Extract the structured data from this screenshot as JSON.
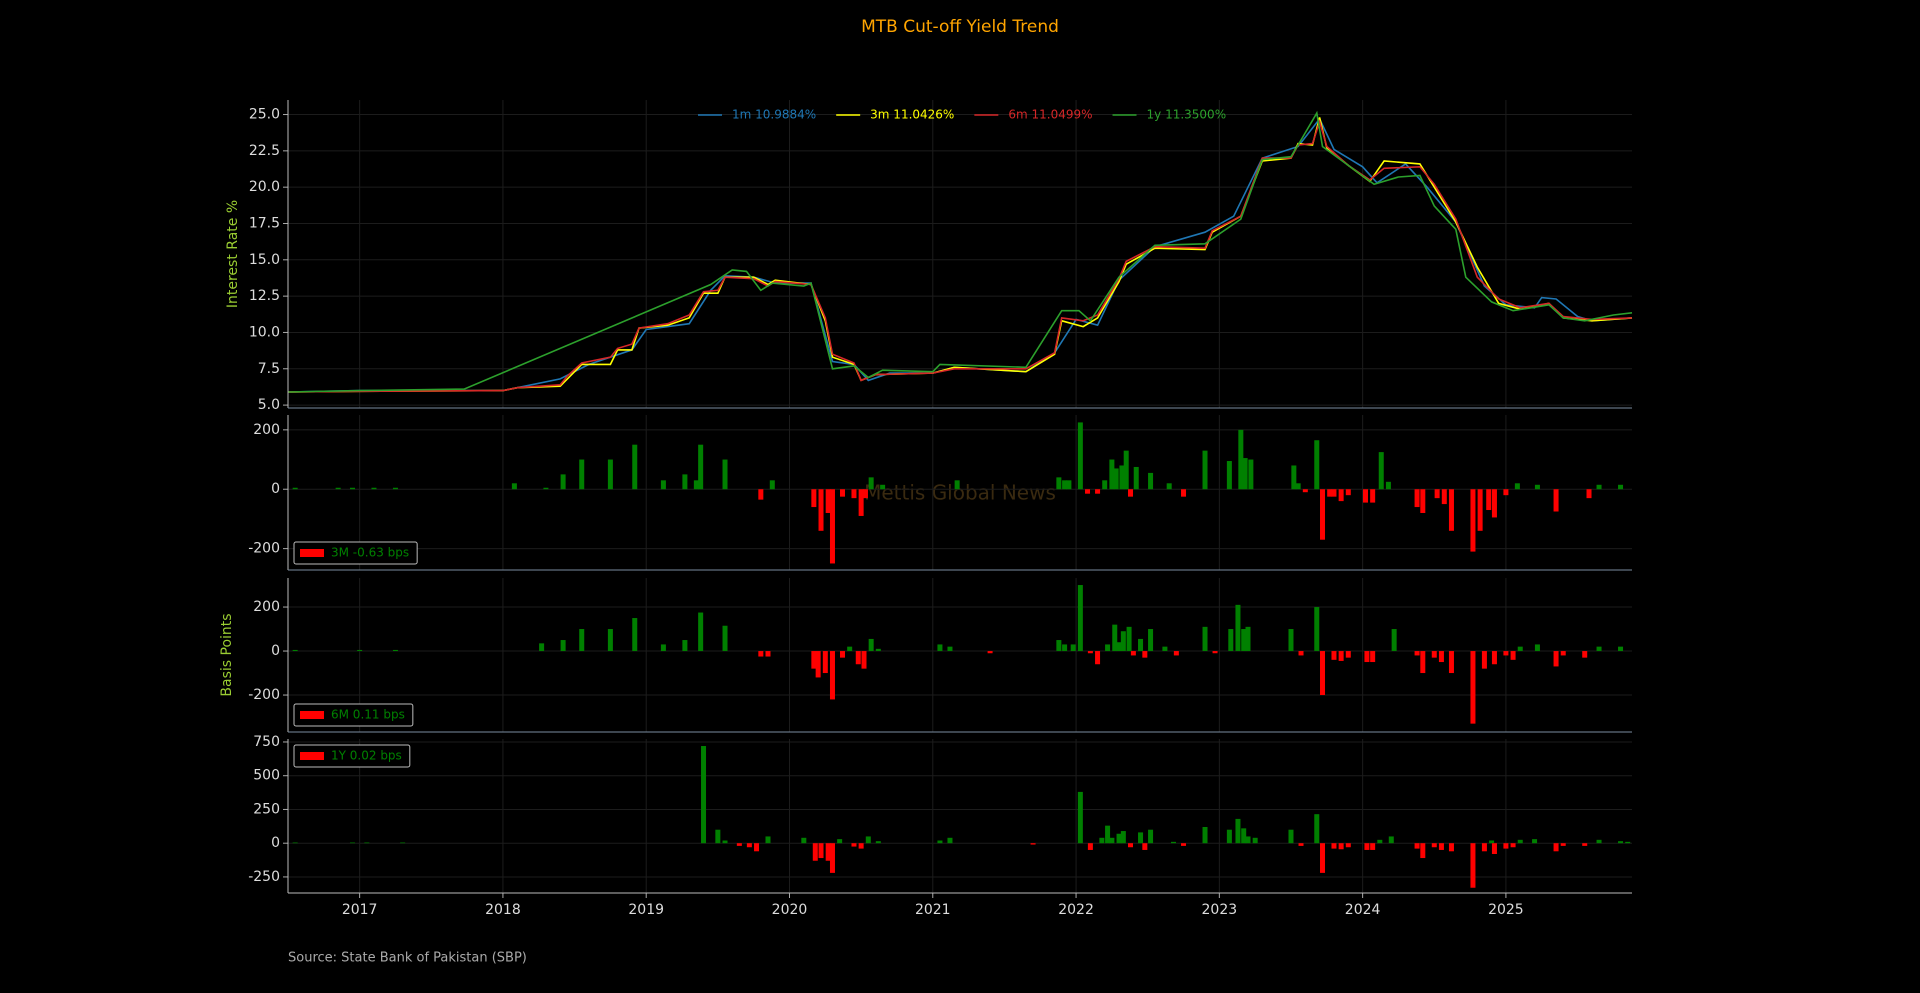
{
  "chart_data": [
    {
      "type": "line",
      "title": "MTB Cut-off Yield Trend",
      "ylabel": "Interest Rate %",
      "xlim": [
        2016.5,
        2025.88
      ],
      "xticks": [
        2017,
        2018,
        2019,
        2020,
        2021,
        2022,
        2023,
        2024,
        2025
      ],
      "ylim": [
        4.8,
        26.0
      ],
      "yticks": [
        {
          "value": 5,
          "label": "5.0"
        },
        {
          "value": 7.5,
          "label": "7.5"
        },
        {
          "value": 10,
          "label": "10.0"
        },
        {
          "value": 12.5,
          "label": "12.5"
        },
        {
          "value": 15,
          "label": "15.0"
        },
        {
          "value": 17.5,
          "label": "17.5"
        },
        {
          "value": 20,
          "label": "20.0"
        },
        {
          "value": 22.5,
          "label": "22.5"
        },
        {
          "value": 25,
          "label": "25.0"
        }
      ],
      "grid": true,
      "legend": "upper center",
      "series": [
        {
          "name": "1m 10.9884%",
          "color": "#1f77b4",
          "x": [
            2016.5,
            2017.0,
            2018.0,
            2018.4,
            2018.6,
            2018.9,
            2019.0,
            2019.3,
            2019.45,
            2019.55,
            2019.75,
            2019.9,
            2020.15,
            2020.3,
            2020.45,
            2020.55,
            2020.7,
            2021.0,
            2021.15,
            2021.65,
            2021.85,
            2022.0,
            2022.15,
            2022.3,
            2022.55,
            2022.9,
            2023.1,
            2023.3,
            2023.55,
            2023.7,
            2023.8,
            2024.0,
            2024.1,
            2024.3,
            2024.45,
            2024.65,
            2024.85,
            2025.0,
            2025.2,
            2025.25,
            2025.35,
            2025.5,
            2025.6,
            2025.88
          ],
          "values": [
            5.9,
            6.0,
            6.0,
            6.8,
            7.8,
            8.8,
            10.2,
            10.6,
            12.9,
            13.9,
            13.8,
            13.4,
            13.4,
            8.0,
            7.8,
            6.7,
            7.2,
            7.2,
            7.6,
            7.3,
            8.6,
            10.9,
            10.5,
            13.6,
            15.9,
            16.9,
            18.0,
            22.0,
            22.8,
            24.7,
            22.6,
            21.4,
            20.3,
            21.6,
            20.0,
            17.6,
            13.2,
            11.9,
            11.7,
            12.4,
            12.3,
            11.1,
            10.8,
            11.0
          ]
        },
        {
          "name": "3m 11.0426%",
          "color": "#ffff00",
          "x": [
            2016.5,
            2017.0,
            2018.0,
            2018.1,
            2018.4,
            2018.45,
            2018.55,
            2018.75,
            2018.8,
            2018.9,
            2018.95,
            2019.15,
            2019.3,
            2019.4,
            2019.5,
            2019.55,
            2019.75,
            2019.85,
            2019.9,
            2020.15,
            2020.25,
            2020.3,
            2020.45,
            2020.5,
            2020.6,
            2021.0,
            2021.15,
            2021.65,
            2021.85,
            2021.9,
            2022.05,
            2022.15,
            2022.3,
            2022.35,
            2022.55,
            2022.9,
            2022.95,
            2023.15,
            2023.3,
            2023.5,
            2023.55,
            2023.65,
            2023.7,
            2023.75,
            2023.9,
            2024.05,
            2024.15,
            2024.4,
            2024.5,
            2024.65,
            2024.8,
            2024.95,
            2025.1,
            2025.3,
            2025.4,
            2025.6,
            2025.88
          ],
          "values": [
            5.9,
            5.95,
            6.0,
            6.2,
            6.3,
            6.8,
            7.8,
            7.8,
            8.8,
            8.8,
            10.3,
            10.5,
            11.0,
            12.7,
            12.7,
            13.8,
            13.8,
            13.3,
            13.6,
            13.3,
            10.8,
            8.3,
            7.8,
            6.7,
            7.1,
            7.2,
            7.6,
            7.3,
            8.5,
            10.8,
            10.4,
            11.0,
            13.5,
            14.7,
            15.8,
            15.7,
            16.9,
            18.0,
            21.8,
            22.0,
            23.0,
            22.9,
            24.8,
            22.7,
            21.5,
            20.4,
            21.8,
            21.6,
            20.0,
            17.6,
            14.5,
            12.0,
            11.6,
            12.0,
            11.0,
            10.8,
            11.0
          ]
        },
        {
          "name": "6m 11.0499%",
          "color": "#d62728",
          "x": [
            2016.5,
            2017.0,
            2018.0,
            2018.1,
            2018.4,
            2018.45,
            2018.55,
            2018.75,
            2018.8,
            2018.9,
            2018.95,
            2019.15,
            2019.3,
            2019.4,
            2019.5,
            2019.55,
            2019.75,
            2019.85,
            2019.9,
            2020.15,
            2020.25,
            2020.3,
            2020.45,
            2020.5,
            2020.6,
            2021.0,
            2021.15,
            2021.65,
            2021.85,
            2021.9,
            2022.05,
            2022.15,
            2022.3,
            2022.35,
            2022.55,
            2022.9,
            2022.95,
            2023.15,
            2023.3,
            2023.5,
            2023.55,
            2023.65,
            2023.7,
            2023.75,
            2023.9,
            2024.05,
            2024.15,
            2024.4,
            2024.5,
            2024.65,
            2024.8,
            2024.95,
            2025.1,
            2025.3,
            2025.4,
            2025.6,
            2025.88
          ],
          "values": [
            5.9,
            5.95,
            6.0,
            6.2,
            6.4,
            7.0,
            7.9,
            8.3,
            8.9,
            9.2,
            10.3,
            10.6,
            11.2,
            12.8,
            12.9,
            13.8,
            13.7,
            13.2,
            13.5,
            13.3,
            11.0,
            8.5,
            7.9,
            6.7,
            7.1,
            7.2,
            7.5,
            7.5,
            8.6,
            11.0,
            10.8,
            11.2,
            13.7,
            14.9,
            15.9,
            15.8,
            17.0,
            18.0,
            22.0,
            22.0,
            22.9,
            23.0,
            24.5,
            22.8,
            21.5,
            20.5,
            21.3,
            21.4,
            20.2,
            17.8,
            13.8,
            12.3,
            11.7,
            12.0,
            11.1,
            10.9,
            11.0
          ]
        },
        {
          "name": "1y 11.3500%",
          "color": "#2ca02c",
          "x": [
            2016.5,
            2017.0,
            2017.73,
            2019.45,
            2019.6,
            2019.7,
            2019.8,
            2019.88,
            2020.1,
            2020.15,
            2020.3,
            2020.45,
            2020.55,
            2020.65,
            2021.0,
            2021.05,
            2021.65,
            2021.9,
            2022.02,
            2022.1,
            2022.3,
            2022.55,
            2022.9,
            2023.15,
            2023.3,
            2023.5,
            2023.55,
            2023.68,
            2023.72,
            2023.9,
            2024.08,
            2024.25,
            2024.4,
            2024.5,
            2024.65,
            2024.72,
            2024.9,
            2025.05,
            2025.3,
            2025.4,
            2025.55,
            2025.75,
            2025.88
          ],
          "values": [
            5.9,
            6.0,
            6.1,
            13.3,
            14.3,
            14.2,
            12.9,
            13.4,
            13.2,
            13.4,
            7.5,
            7.7,
            6.9,
            7.4,
            7.3,
            7.8,
            7.6,
            11.5,
            11.5,
            10.8,
            13.8,
            16.0,
            16.1,
            17.8,
            21.9,
            22.1,
            22.9,
            25.1,
            22.8,
            21.5,
            20.2,
            20.7,
            20.8,
            18.7,
            17.1,
            13.8,
            12.1,
            11.5,
            11.9,
            11.0,
            10.8,
            11.2,
            11.35
          ]
        }
      ]
    },
    {
      "type": "bar",
      "legend_label": "3M -0.63 bps",
      "legend": "lower left",
      "pos_color": "#008000",
      "neg_color": "#ff0000",
      "xlim": [
        2016.5,
        2025.88
      ],
      "xticks": [
        2017,
        2018,
        2019,
        2020,
        2021,
        2022,
        2023,
        2024,
        2025
      ],
      "ylim": [
        -272,
        250
      ],
      "yticks": [
        -200,
        0,
        200
      ],
      "grid": true,
      "x": [
        2016.55,
        2016.85,
        2016.95,
        2017.1,
        2017.25,
        2018.08,
        2018.3,
        2018.42,
        2018.55,
        2018.75,
        2018.92,
        2019.12,
        2019.27,
        2019.35,
        2019.38,
        2019.55,
        2019.8,
        2019.88,
        2020.17,
        2020.22,
        2020.27,
        2020.3,
        2020.37,
        2020.45,
        2020.5,
        2020.53,
        2020.57,
        2020.65,
        2021.17,
        2021.88,
        2021.92,
        2021.95,
        2022.03,
        2022.08,
        2022.15,
        2022.2,
        2022.25,
        2022.28,
        2022.32,
        2022.35,
        2022.38,
        2022.42,
        2022.52,
        2022.65,
        2022.75,
        2022.9,
        2023.07,
        2023.15,
        2023.18,
        2023.22,
        2023.52,
        2023.55,
        2023.6,
        2023.68,
        2023.72,
        2023.77,
        2023.8,
        2023.85,
        2023.9,
        2024.02,
        2024.07,
        2024.13,
        2024.18,
        2024.38,
        2024.42,
        2024.52,
        2024.57,
        2024.62,
        2024.77,
        2024.82,
        2024.88,
        2024.92,
        2025.0,
        2025.08,
        2025.22,
        2025.35,
        2025.58,
        2025.65,
        2025.8
      ],
      "values": [
        5,
        5,
        5,
        5,
        5,
        20,
        5,
        50,
        100,
        100,
        150,
        30,
        50,
        30,
        150,
        100,
        -35,
        30,
        -60,
        -140,
        -80,
        -250,
        -25,
        -30,
        -90,
        -30,
        40,
        15,
        30,
        40,
        30,
        30,
        225,
        -15,
        -15,
        30,
        100,
        70,
        80,
        130,
        -25,
        75,
        55,
        20,
        -25,
        130,
        95,
        200,
        105,
        100,
        80,
        20,
        -10,
        165,
        -170,
        -25,
        -25,
        -40,
        -20,
        -45,
        -45,
        125,
        25,
        -60,
        -80,
        -30,
        -50,
        -140,
        -210,
        -140,
        -70,
        -95,
        -20,
        20,
        15,
        -75,
        -30,
        15,
        15
      ]
    },
    {
      "type": "bar",
      "ylabel": "Basis Points",
      "legend_label": "6M 0.11 bps",
      "legend": "lower left",
      "pos_color": "#008000",
      "neg_color": "#ff0000",
      "xlim": [
        2016.5,
        2025.88
      ],
      "xticks": [
        2017,
        2018,
        2019,
        2020,
        2021,
        2022,
        2023,
        2024,
        2025
      ],
      "ylim": [
        -368,
        332
      ],
      "yticks": [
        -200,
        0,
        200
      ],
      "grid": true,
      "x": [
        2016.55,
        2017.0,
        2017.25,
        2018.27,
        2018.42,
        2018.55,
        2018.75,
        2018.92,
        2019.12,
        2019.27,
        2019.38,
        2019.55,
        2019.8,
        2019.85,
        2020.17,
        2020.2,
        2020.25,
        2020.3,
        2020.37,
        2020.42,
        2020.48,
        2020.52,
        2020.57,
        2020.62,
        2021.05,
        2021.12,
        2021.4,
        2021.88,
        2021.92,
        2021.98,
        2022.03,
        2022.1,
        2022.15,
        2022.22,
        2022.27,
        2022.3,
        2022.33,
        2022.37,
        2022.4,
        2022.45,
        2022.48,
        2022.52,
        2022.62,
        2022.7,
        2022.9,
        2022.97,
        2023.08,
        2023.13,
        2023.17,
        2023.2,
        2023.5,
        2023.57,
        2023.68,
        2023.72,
        2023.8,
        2023.85,
        2023.9,
        2024.03,
        2024.07,
        2024.22,
        2024.38,
        2024.42,
        2024.5,
        2024.55,
        2024.62,
        2024.77,
        2024.85,
        2024.92,
        2025.0,
        2025.05,
        2025.1,
        2025.22,
        2025.35,
        2025.4,
        2025.55,
        2025.65,
        2025.8
      ],
      "values": [
        5,
        5,
        5,
        35,
        50,
        100,
        100,
        150,
        30,
        50,
        175,
        115,
        -25,
        -25,
        -80,
        -120,
        -100,
        -220,
        -30,
        20,
        -60,
        -80,
        55,
        10,
        30,
        20,
        -10,
        50,
        30,
        30,
        300,
        -10,
        -60,
        30,
        120,
        40,
        90,
        110,
        -20,
        55,
        -30,
        100,
        20,
        -20,
        110,
        -10,
        100,
        210,
        100,
        110,
        100,
        -20,
        200,
        -200,
        -40,
        -45,
        -30,
        -50,
        -50,
        100,
        -20,
        -100,
        -30,
        -50,
        -100,
        -330,
        -80,
        -60,
        -20,
        -40,
        20,
        30,
        -70,
        -20,
        -30,
        20,
        20
      ]
    },
    {
      "type": "bar",
      "legend_label": "1Y 0.02 bps",
      "legend": "upper left",
      "pos_color": "#008000",
      "neg_color": "#ff0000",
      "xlim": [
        2016.5,
        2025.88
      ],
      "xticks": [
        2017,
        2018,
        2019,
        2020,
        2021,
        2022,
        2023,
        2024,
        2025
      ],
      "show_xtick_labels": true,
      "ylim": [
        -369,
        772
      ],
      "yticks": [
        -250,
        0,
        250,
        500,
        750
      ],
      "grid": true,
      "x": [
        2016.55,
        2016.95,
        2017.05,
        2017.3,
        2019.4,
        2019.5,
        2019.55,
        2019.65,
        2019.72,
        2019.77,
        2019.85,
        2020.1,
        2020.18,
        2020.22,
        2020.27,
        2020.3,
        2020.35,
        2020.45,
        2020.5,
        2020.55,
        2020.62,
        2021.05,
        2021.12,
        2021.7,
        2022.03,
        2022.1,
        2022.18,
        2022.22,
        2022.25,
        2022.3,
        2022.33,
        2022.38,
        2022.45,
        2022.48,
        2022.52,
        2022.68,
        2022.75,
        2022.9,
        2023.07,
        2023.13,
        2023.17,
        2023.2,
        2023.25,
        2023.5,
        2023.57,
        2023.68,
        2023.72,
        2023.8,
        2023.85,
        2023.9,
        2024.03,
        2024.07,
        2024.12,
        2024.2,
        2024.38,
        2024.42,
        2024.5,
        2024.55,
        2024.62,
        2024.77,
        2024.85,
        2024.9,
        2024.92,
        2025.0,
        2025.05,
        2025.1,
        2025.2,
        2025.35,
        2025.4,
        2025.55,
        2025.65,
        2025.8,
        2025.85
      ],
      "values": [
        5,
        5,
        5,
        5,
        720,
        100,
        20,
        -20,
        -30,
        -60,
        50,
        40,
        -130,
        -110,
        -130,
        -220,
        30,
        -25,
        -40,
        50,
        15,
        20,
        40,
        -10,
        380,
        -50,
        40,
        130,
        40,
        70,
        90,
        -30,
        80,
        -50,
        100,
        10,
        -20,
        120,
        100,
        180,
        110,
        50,
        40,
        100,
        -20,
        215,
        -220,
        -40,
        -45,
        -30,
        -50,
        -50,
        25,
        50,
        -40,
        -110,
        -30,
        -50,
        -60,
        -330,
        -60,
        20,
        -80,
        -40,
        -30,
        25,
        30,
        -60,
        -20,
        -20,
        25,
        15,
        10
      ]
    }
  ],
  "watermark": "Mettis Global News",
  "source": "Source: State Bank of Pakistan (SBP)"
}
